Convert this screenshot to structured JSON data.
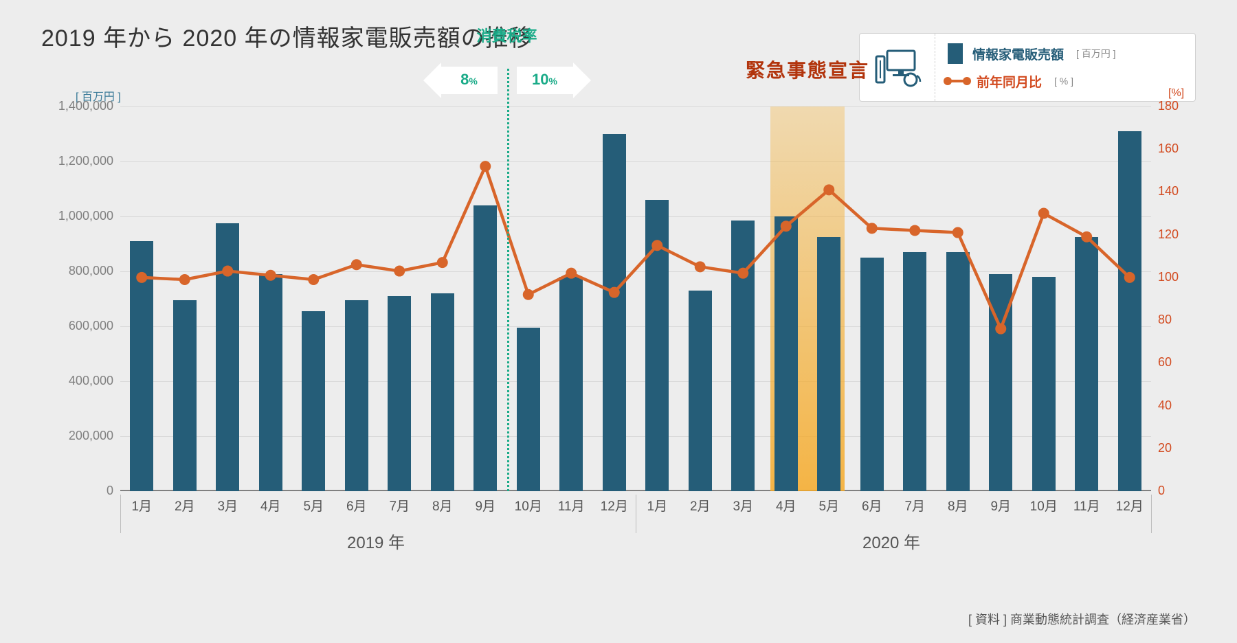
{
  "title": "2019 年から 2020 年の情報家電販売額の推移",
  "legend": {
    "series1_name": "情報家電販売額",
    "series1_unit": "[ 百万円 ]",
    "series2_name": "前年同月比",
    "series2_unit": "[ % ]"
  },
  "y_left": {
    "unit": "[ 百万円 ]",
    "min": 0,
    "max": 1400000,
    "step": 200000,
    "ticks": [
      "0",
      "200,000",
      "400,000",
      "600,000",
      "800,000",
      "1,000,000",
      "1,200,000",
      "1,400,000"
    ],
    "color": "#3a7a98"
  },
  "y_right": {
    "unit": "[%]",
    "min": 0,
    "max": 180,
    "step": 20,
    "ticks": [
      "0",
      "20",
      "40",
      "60",
      "80",
      "100",
      "120",
      "140",
      "160",
      "180"
    ],
    "color": "#d24a1f"
  },
  "tax": {
    "title": "消費税率",
    "left_label": "8",
    "right_label": "10",
    "pct": "%",
    "boundary_after_index": 8
  },
  "emergency": {
    "label": "緊急事態宣言",
    "start_index": 15,
    "end_index": 16
  },
  "years": [
    {
      "label": "2019 年",
      "start": 0,
      "end": 11
    },
    {
      "label": "2020 年",
      "start": 12,
      "end": 23
    }
  ],
  "x_labels": [
    "1月",
    "2月",
    "3月",
    "4月",
    "5月",
    "6月",
    "7月",
    "8月",
    "9月",
    "10月",
    "11月",
    "12月",
    "1月",
    "2月",
    "3月",
    "4月",
    "5月",
    "6月",
    "7月",
    "8月",
    "9月",
    "10月",
    "11月",
    "12月"
  ],
  "bars": {
    "color": "#255d78",
    "width_ratio": 0.55,
    "values": [
      910000,
      695000,
      975000,
      790000,
      655000,
      695000,
      710000,
      720000,
      1040000,
      595000,
      780000,
      1300000,
      1060000,
      730000,
      985000,
      1000000,
      925000,
      850000,
      870000,
      870000,
      790000,
      780000,
      925000,
      1310000
    ]
  },
  "line": {
    "color": "#d8652a",
    "dot_radius": 8,
    "width": 4.5,
    "values": [
      100,
      99,
      103,
      101,
      99,
      106,
      103,
      107,
      152,
      92,
      102,
      93,
      115,
      105,
      102,
      124,
      141,
      123,
      122,
      121,
      76,
      130,
      119,
      100
    ]
  },
  "styling": {
    "background": "#ededed",
    "grid_color": "#d8d8d8",
    "baseline_color": "#808080",
    "title_color": "#333",
    "title_fontsize": 34,
    "xlabel_color": "#555",
    "xlabel_fontsize": 19,
    "year_fontsize": 24,
    "highlight_gradient": [
      "rgba(245,180,60,0.35)",
      "rgba(245,170,40,0.85)"
    ],
    "tax_color": "#1aab88",
    "emergency_color": "#b2340c"
  },
  "source": "[ 資料 ] 商業動態統計調査（経済産業省）"
}
